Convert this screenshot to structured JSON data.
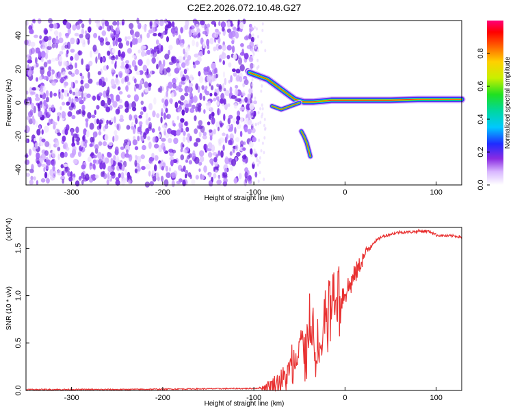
{
  "title": "C2E2.2026.072.10.48.G27",
  "colorbar": {
    "label": "Normalized spectral amplitude",
    "ticks": [
      "0.0",
      "0.2",
      "0.4",
      "0.6",
      "0.8"
    ]
  },
  "chart_data": [
    {
      "type": "heatmap",
      "title": "C2E2.2026.072.10.48.G27",
      "xlabel": "Height of straight line (km)",
      "ylabel": "Frequency (Hz)",
      "xlim": [
        -350,
        128
      ],
      "ylim": [
        -49,
        49
      ],
      "xticks": [
        "-300",
        "-200",
        "-100",
        "0",
        "100"
      ],
      "yticks": [
        "-40",
        "-20",
        "0",
        "20",
        "40"
      ],
      "zlim": [
        0,
        1
      ],
      "zlabel": "Normalized spectral amplitude",
      "noise_region_x": [
        -350,
        -102
      ],
      "carrier_track": {
        "x": [
          -105,
          -95,
          -85,
          -75,
          -65,
          -55,
          -45,
          -35,
          -25,
          -15,
          0,
          20,
          50,
          80,
          100,
          128
        ],
        "y": [
          18,
          16,
          14,
          10,
          6,
          2,
          0.5,
          0.5,
          1,
          1.5,
          1.5,
          1.5,
          1.5,
          2,
          2,
          2
        ]
      },
      "branches": [
        {
          "x": [
            -80,
            -70,
            -60,
            -50
          ],
          "y": [
            -2,
            -4,
            -2,
            0
          ]
        },
        {
          "x": [
            -48,
            -45,
            -42,
            -38
          ],
          "y": [
            -17,
            -20,
            -24,
            -32
          ]
        }
      ]
    },
    {
      "type": "line",
      "xlabel": "Height of straight line (km)",
      "ylabel": "SNR (10 * v/v)",
      "yscale_label": "(x10^4)",
      "xlim": [
        -350,
        128
      ],
      "ylim": [
        0,
        1.72
      ],
      "xticks": [
        "-300",
        "-200",
        "-100",
        "0",
        "100"
      ],
      "yticks": [
        "0.0",
        "0.5",
        "1.0",
        "1.5"
      ],
      "series": [
        {
          "color": "#e83030",
          "x": [
            -350,
            -250,
            -120,
            -100,
            -90,
            -80,
            -70,
            -60,
            -55,
            -50,
            -45,
            -40,
            -35,
            -30,
            -25,
            -20,
            -15,
            -10,
            -5,
            0,
            5,
            10,
            15,
            20,
            25,
            30,
            40,
            50,
            60,
            70,
            80,
            90,
            95,
            100,
            110,
            120,
            128
          ],
          "y": [
            0.01,
            0.01,
            0.02,
            0.02,
            0.03,
            0.06,
            0.1,
            0.18,
            0.35,
            0.55,
            0.45,
            0.6,
            0.4,
            0.3,
            0.55,
            0.7,
            0.75,
            0.85,
            0.95,
            1.05,
            1.1,
            1.2,
            1.3,
            1.4,
            1.48,
            1.55,
            1.62,
            1.65,
            1.67,
            1.67,
            1.68,
            1.68,
            1.67,
            1.64,
            1.63,
            1.63,
            1.62
          ]
        }
      ]
    }
  ]
}
